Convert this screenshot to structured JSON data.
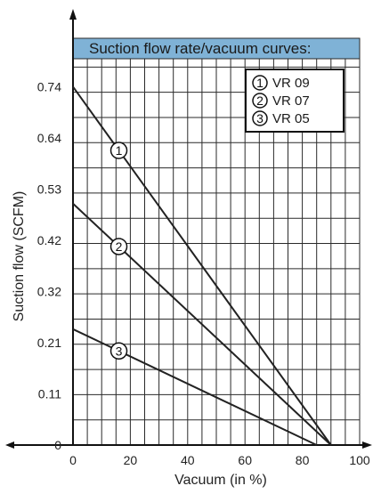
{
  "chart_data": {
    "type": "line",
    "title": "Suction flow rate/vacuum curves:",
    "xlabel": "Vacuum (in %)",
    "ylabel": "Suction flow (SCFM)",
    "xlim": [
      0,
      100
    ],
    "ylim": [
      0,
      0.8
    ],
    "x_ticks": [
      "0",
      "20",
      "40",
      "60",
      "80",
      "100"
    ],
    "x_tick_values": [
      0,
      20,
      40,
      60,
      80,
      100
    ],
    "y_ticks": [
      "0",
      "0.11",
      "0.21",
      "0.32",
      "0.42",
      "0.53",
      "0.64",
      "0.74"
    ],
    "y_tick_values": [
      0,
      0.106,
      0.212,
      0.318,
      0.424,
      0.53,
      0.636,
      0.742
    ],
    "grid": true,
    "legend_position": "top-right",
    "series": [
      {
        "name": "VR 09",
        "marker": "1",
        "x": [
          0,
          90
        ],
        "y": [
          0.742,
          0
        ],
        "marker_x": 16
      },
      {
        "name": "VR 07",
        "marker": "2",
        "x": [
          0,
          90
        ],
        "y": [
          0.5,
          0
        ],
        "marker_x": 16
      },
      {
        "name": "VR 05",
        "marker": "3",
        "x": [
          0,
          85
        ],
        "y": [
          0.24,
          0
        ],
        "marker_x": 16
      }
    ],
    "colors": {
      "title_band": "#7fb2d6",
      "line": "#222222",
      "grid": "#2a2a2a"
    }
  }
}
